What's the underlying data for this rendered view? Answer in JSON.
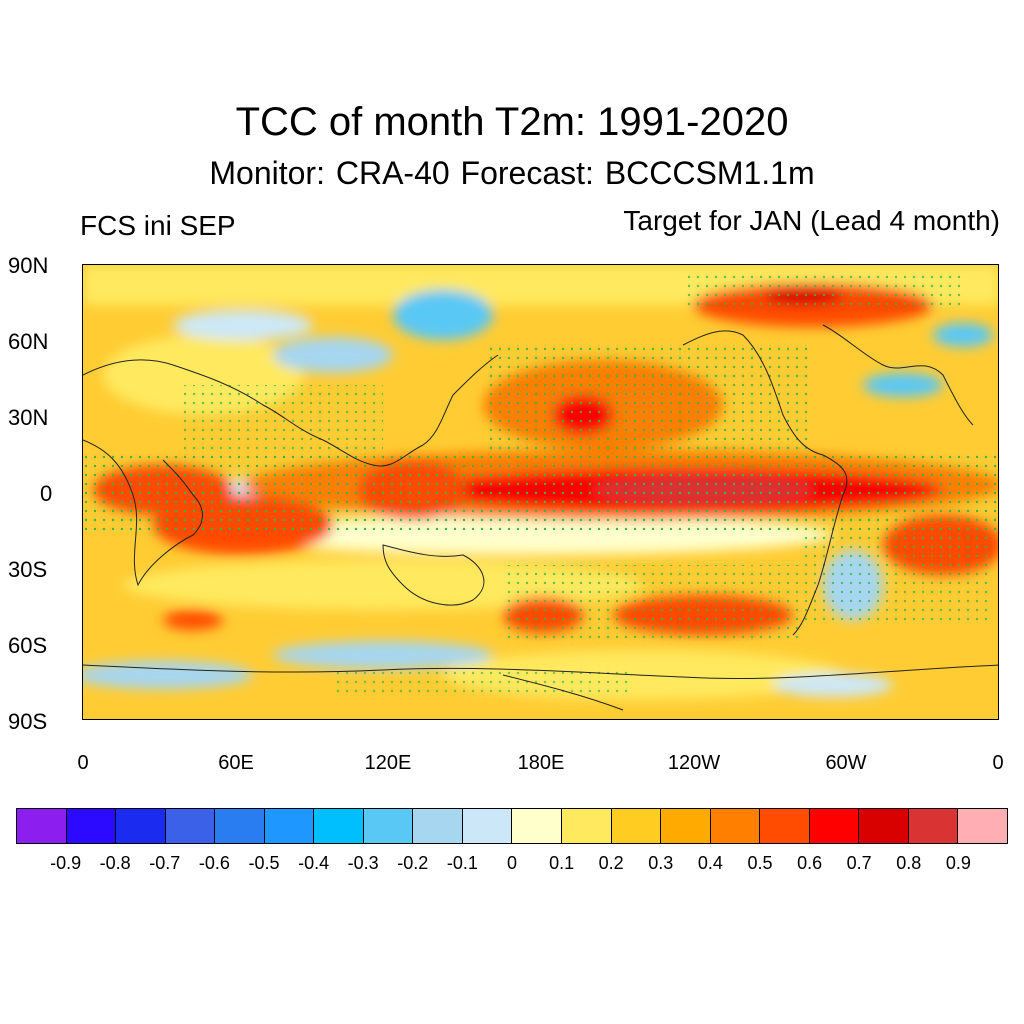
{
  "header": {
    "title": "TCC of month T2m: 1991-2020",
    "subtitle": "Monitor: CRA-40   Forecast: BCCCSM1.1m",
    "left_label": "FCS ini SEP",
    "right_label": "Target for JAN (Lead 4 month)"
  },
  "axes": {
    "lat_ticks": [
      "90N",
      "60N",
      "30N",
      "0",
      "30S",
      "60S",
      "90S"
    ],
    "lon_ticks": [
      "0",
      "60E",
      "120E",
      "180E",
      "120W",
      "60W",
      "0"
    ]
  },
  "colorbar": {
    "labels": [
      "-0.9",
      "-0.8",
      "-0.7",
      "-0.6",
      "-0.5",
      "-0.4",
      "-0.3",
      "-0.2",
      "-0.1",
      "0",
      "0.1",
      "0.2",
      "0.3",
      "0.4",
      "0.5",
      "0.6",
      "0.7",
      "0.8",
      "0.9"
    ],
    "colors": [
      "#8c1ef0",
      "#2b0aff",
      "#1b2bf0",
      "#3b61e8",
      "#2a7df0",
      "#1e98ff",
      "#00bfff",
      "#5ac8f5",
      "#a6d6f0",
      "#cce8f8",
      "#ffffcc",
      "#ffe95e",
      "#ffcc22",
      "#ffaa00",
      "#ff7f00",
      "#ff4c00",
      "#ff0000",
      "#d90000",
      "#d93333",
      "#ffaeb4"
    ]
  },
  "map": {
    "ocean_base_color": "#ffcc33",
    "significance_dot_color": "#3cb44b",
    "coastline_color": "#222222"
  }
}
